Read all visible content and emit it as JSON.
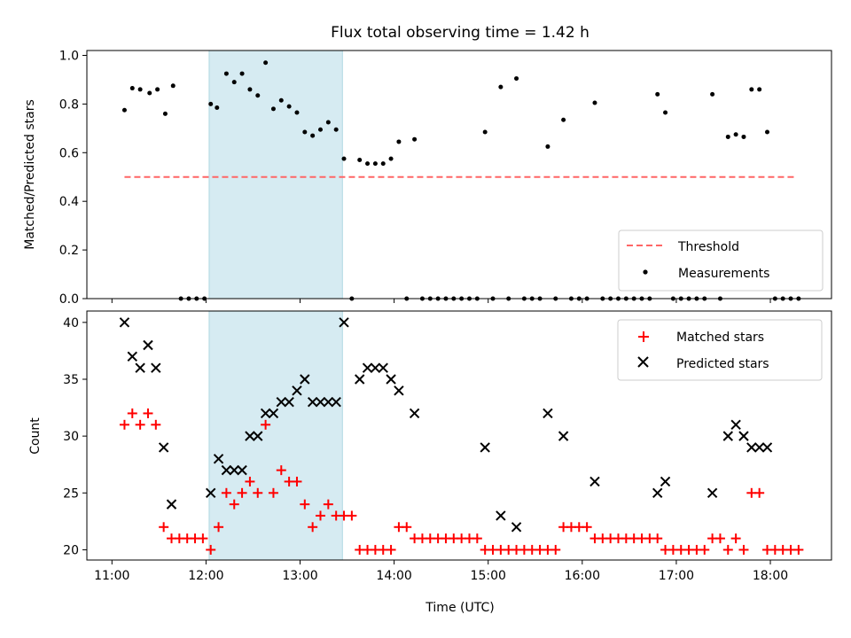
{
  "chart_data": {
    "type": "scatter",
    "title": "Flux total observing time = 1.42 h",
    "xlabel": "Time (UTC)",
    "x_ticks": [
      "11:00",
      "12:00",
      "13:00",
      "14:00",
      "15:00",
      "16:00",
      "17:00",
      "18:00"
    ],
    "xlim": [
      "10:44",
      "18:39"
    ],
    "highlight_span": [
      "12:02",
      "13:27"
    ],
    "highlight_color": "#add8e6",
    "panels": [
      {
        "ylabel": "Matched/Predicted stars",
        "ylim": [
          0,
          1.02
        ],
        "y_ticks": [
          "0.0",
          "0.2",
          "0.4",
          "0.6",
          "0.8",
          "1.0"
        ],
        "legend_position": "lower right",
        "legend": [
          {
            "label": "Threshold",
            "marker": "dashed-line",
            "color": "#ff6666"
          },
          {
            "label": "Measurements",
            "marker": "dot",
            "color": "#000000"
          }
        ],
        "threshold": {
          "value": 0.5,
          "x_range": [
            "11:08",
            "18:15"
          ],
          "color": "#ff6666"
        },
        "measurements": [
          [
            "11:08",
            0.775
          ],
          [
            "11:13",
            0.865
          ],
          [
            "11:18",
            0.86
          ],
          [
            "11:24",
            0.845
          ],
          [
            "11:29",
            0.86
          ],
          [
            "11:34",
            0.76
          ],
          [
            "11:39",
            0.875
          ],
          [
            "11:44",
            0
          ],
          [
            "11:49",
            0
          ],
          [
            "11:54",
            0
          ],
          [
            "11:59",
            0
          ],
          [
            "12:03",
            0.8
          ],
          [
            "12:07",
            0.785
          ],
          [
            "12:13",
            0.925
          ],
          [
            "12:18",
            0.89
          ],
          [
            "12:23",
            0.925
          ],
          [
            "12:28",
            0.86
          ],
          [
            "12:33",
            0.835
          ],
          [
            "12:38",
            0.97
          ],
          [
            "12:43",
            0.78
          ],
          [
            "12:48",
            0.815
          ],
          [
            "12:53",
            0.79
          ],
          [
            "12:58",
            0.765
          ],
          [
            "13:03",
            0.685
          ],
          [
            "13:08",
            0.67
          ],
          [
            "13:13",
            0.695
          ],
          [
            "13:18",
            0.725
          ],
          [
            "13:23",
            0.695
          ],
          [
            "13:28",
            0.575
          ],
          [
            "13:33",
            0
          ],
          [
            "13:38",
            0.57
          ],
          [
            "13:43",
            0.555
          ],
          [
            "13:48",
            0.555
          ],
          [
            "13:53",
            0.555
          ],
          [
            "13:58",
            0.575
          ],
          [
            "14:03",
            0.645
          ],
          [
            "14:08",
            0
          ],
          [
            "14:13",
            0.655
          ],
          [
            "14:18",
            0
          ],
          [
            "14:23",
            0
          ],
          [
            "14:28",
            0
          ],
          [
            "14:33",
            0
          ],
          [
            "14:38",
            0
          ],
          [
            "14:43",
            0
          ],
          [
            "14:48",
            0
          ],
          [
            "14:53",
            0
          ],
          [
            "14:58",
            0.685
          ],
          [
            "15:03",
            0
          ],
          [
            "15:08",
            0.87
          ],
          [
            "15:13",
            0
          ],
          [
            "15:18",
            0.905
          ],
          [
            "15:23",
            0
          ],
          [
            "15:28",
            0
          ],
          [
            "15:33",
            0
          ],
          [
            "15:38",
            0.625
          ],
          [
            "15:43",
            0
          ],
          [
            "15:48",
            0.735
          ],
          [
            "15:53",
            0
          ],
          [
            "15:58",
            0
          ],
          [
            "16:03",
            0
          ],
          [
            "16:08",
            0.805
          ],
          [
            "16:13",
            0
          ],
          [
            "16:18",
            0
          ],
          [
            "16:23",
            0
          ],
          [
            "16:28",
            0
          ],
          [
            "16:33",
            0
          ],
          [
            "16:38",
            0
          ],
          [
            "16:43",
            0
          ],
          [
            "16:48",
            0.84
          ],
          [
            "16:53",
            0.765
          ],
          [
            "16:58",
            0
          ],
          [
            "17:03",
            0
          ],
          [
            "17:08",
            0
          ],
          [
            "17:13",
            0
          ],
          [
            "17:18",
            0
          ],
          [
            "17:23",
            0.84
          ],
          [
            "17:28",
            0
          ],
          [
            "17:33",
            0.665
          ],
          [
            "17:38",
            0.675
          ],
          [
            "17:43",
            0.665
          ],
          [
            "17:48",
            0.86
          ],
          [
            "17:53",
            0.86
          ],
          [
            "17:58",
            0.685
          ],
          [
            "18:03",
            0
          ],
          [
            "18:08",
            0
          ],
          [
            "18:13",
            0
          ],
          [
            "18:18",
            0
          ]
        ]
      },
      {
        "ylabel": "Count",
        "ylim": [
          19.1,
          41
        ],
        "y_ticks": [
          "20",
          "25",
          "30",
          "35",
          "40"
        ],
        "legend_position": "upper right",
        "legend": [
          {
            "label": "Matched stars",
            "marker": "plus",
            "color": "#ff0000"
          },
          {
            "label": "Predicted stars",
            "marker": "x",
            "color": "#000000"
          }
        ],
        "matched": [
          [
            "11:08",
            31
          ],
          [
            "11:13",
            32
          ],
          [
            "11:18",
            31
          ],
          [
            "11:23",
            32
          ],
          [
            "11:28",
            31
          ],
          [
            "11:33",
            22
          ],
          [
            "11:38",
            21
          ],
          [
            "11:43",
            21
          ],
          [
            "11:48",
            21
          ],
          [
            "11:53",
            21
          ],
          [
            "11:58",
            21
          ],
          [
            "12:03",
            20
          ],
          [
            "12:08",
            22
          ],
          [
            "12:13",
            25
          ],
          [
            "12:18",
            24
          ],
          [
            "12:23",
            25
          ],
          [
            "12:28",
            26
          ],
          [
            "12:33",
            25
          ],
          [
            "12:38",
            31
          ],
          [
            "12:43",
            25
          ],
          [
            "12:48",
            27
          ],
          [
            "12:53",
            26
          ],
          [
            "12:58",
            26
          ],
          [
            "13:03",
            24
          ],
          [
            "13:08",
            22
          ],
          [
            "13:13",
            23
          ],
          [
            "13:18",
            24
          ],
          [
            "13:23",
            23
          ],
          [
            "13:28",
            23
          ],
          [
            "13:33",
            23
          ],
          [
            "13:38",
            20
          ],
          [
            "13:43",
            20
          ],
          [
            "13:48",
            20
          ],
          [
            "13:53",
            20
          ],
          [
            "13:58",
            20
          ],
          [
            "14:03",
            22
          ],
          [
            "14:08",
            22
          ],
          [
            "14:13",
            21
          ],
          [
            "14:18",
            21
          ],
          [
            "14:23",
            21
          ],
          [
            "14:28",
            21
          ],
          [
            "14:33",
            21
          ],
          [
            "14:38",
            21
          ],
          [
            "14:43",
            21
          ],
          [
            "14:48",
            21
          ],
          [
            "14:53",
            21
          ],
          [
            "14:58",
            20
          ],
          [
            "15:03",
            20
          ],
          [
            "15:08",
            20
          ],
          [
            "15:13",
            20
          ],
          [
            "15:18",
            20
          ],
          [
            "15:23",
            20
          ],
          [
            "15:28",
            20
          ],
          [
            "15:33",
            20
          ],
          [
            "15:38",
            20
          ],
          [
            "15:43",
            20
          ],
          [
            "15:48",
            22
          ],
          [
            "15:53",
            22
          ],
          [
            "15:58",
            22
          ],
          [
            "16:03",
            22
          ],
          [
            "16:08",
            21
          ],
          [
            "16:13",
            21
          ],
          [
            "16:18",
            21
          ],
          [
            "16:23",
            21
          ],
          [
            "16:28",
            21
          ],
          [
            "16:33",
            21
          ],
          [
            "16:38",
            21
          ],
          [
            "16:43",
            21
          ],
          [
            "16:48",
            21
          ],
          [
            "16:53",
            20
          ],
          [
            "16:58",
            20
          ],
          [
            "17:03",
            20
          ],
          [
            "17:08",
            20
          ],
          [
            "17:13",
            20
          ],
          [
            "17:18",
            20
          ],
          [
            "17:23",
            21
          ],
          [
            "17:28",
            21
          ],
          [
            "17:33",
            20
          ],
          [
            "17:38",
            21
          ],
          [
            "17:43",
            20
          ],
          [
            "17:48",
            25
          ],
          [
            "17:53",
            25
          ],
          [
            "17:58",
            20
          ],
          [
            "18:03",
            20
          ],
          [
            "18:08",
            20
          ],
          [
            "18:13",
            20
          ],
          [
            "18:18",
            20
          ]
        ],
        "predicted": [
          [
            "11:08",
            40
          ],
          [
            "11:13",
            37
          ],
          [
            "11:18",
            36
          ],
          [
            "11:23",
            38
          ],
          [
            "11:28",
            36
          ],
          [
            "11:33",
            29
          ],
          [
            "11:38",
            24
          ],
          [
            "12:03",
            25
          ],
          [
            "12:08",
            28
          ],
          [
            "12:13",
            27
          ],
          [
            "12:18",
            27
          ],
          [
            "12:23",
            27
          ],
          [
            "12:28",
            30
          ],
          [
            "12:33",
            30
          ],
          [
            "12:38",
            32
          ],
          [
            "12:43",
            32
          ],
          [
            "12:48",
            33
          ],
          [
            "12:53",
            33
          ],
          [
            "12:58",
            34
          ],
          [
            "13:03",
            35
          ],
          [
            "13:08",
            33
          ],
          [
            "13:13",
            33
          ],
          [
            "13:18",
            33
          ],
          [
            "13:23",
            33
          ],
          [
            "13:28",
            40
          ],
          [
            "13:38",
            35
          ],
          [
            "13:43",
            36
          ],
          [
            "13:48",
            36
          ],
          [
            "13:53",
            36
          ],
          [
            "13:58",
            35
          ],
          [
            "14:03",
            34
          ],
          [
            "14:13",
            32
          ],
          [
            "14:58",
            29
          ],
          [
            "15:08",
            23
          ],
          [
            "15:18",
            22
          ],
          [
            "15:38",
            32
          ],
          [
            "15:48",
            30
          ],
          [
            "16:08",
            26
          ],
          [
            "16:48",
            25
          ],
          [
            "16:53",
            26
          ],
          [
            "17:23",
            25
          ],
          [
            "17:33",
            30
          ],
          [
            "17:38",
            31
          ],
          [
            "17:43",
            30
          ],
          [
            "17:48",
            29
          ],
          [
            "17:53",
            29
          ],
          [
            "17:58",
            29
          ]
        ]
      }
    ]
  }
}
